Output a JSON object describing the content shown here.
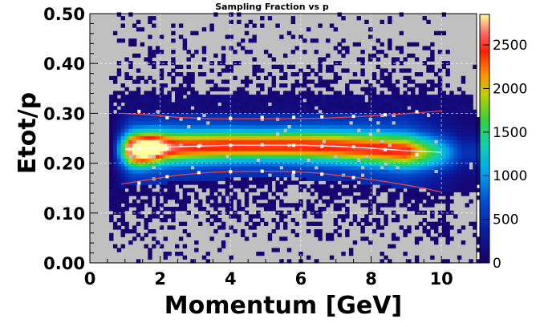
{
  "chart_data": {
    "type": "heatmap",
    "title": "Sampling Fraction vs p",
    "xlabel": "Momentum  [GeV]",
    "ylabel": "Etot/p",
    "xlim": [
      0,
      11
    ],
    "ylim": [
      0.0,
      0.5
    ],
    "x_ticks": [
      "0",
      "2",
      "4",
      "6",
      "8",
      "10"
    ],
    "y_ticks": [
      "0.00",
      "0.10",
      "0.20",
      "0.30",
      "0.40",
      "0.50"
    ],
    "z_range": [
      0,
      2850
    ],
    "z_ticks": [
      "0",
      "500",
      "1000",
      "1500",
      "2000",
      "2500"
    ],
    "colormap": "rainbow",
    "background_color": "#c0c0c0",
    "grid": true,
    "band": {
      "center": [
        {
          "x": 1.0,
          "y": 0.228
        },
        {
          "x": 1.5,
          "y": 0.229
        },
        {
          "x": 2.0,
          "y": 0.232
        },
        {
          "x": 3.0,
          "y": 0.234
        },
        {
          "x": 4.0,
          "y": 0.236
        },
        {
          "x": 5.0,
          "y": 0.236
        },
        {
          "x": 6.0,
          "y": 0.236
        },
        {
          "x": 7.0,
          "y": 0.234
        },
        {
          "x": 8.0,
          "y": 0.23
        },
        {
          "x": 9.0,
          "y": 0.225
        },
        {
          "x": 10.0,
          "y": 0.222
        }
      ],
      "upper": [
        {
          "x": 0.9,
          "y": 0.3
        },
        {
          "x": 1.5,
          "y": 0.298
        },
        {
          "x": 2.5,
          "y": 0.292
        },
        {
          "x": 3.5,
          "y": 0.289
        },
        {
          "x": 4.5,
          "y": 0.289
        },
        {
          "x": 5.5,
          "y": 0.289
        },
        {
          "x": 6.5,
          "y": 0.29
        },
        {
          "x": 7.5,
          "y": 0.293
        },
        {
          "x": 8.5,
          "y": 0.297
        },
        {
          "x": 9.5,
          "y": 0.302
        },
        {
          "x": 10.0,
          "y": 0.305
        }
      ],
      "lower": [
        {
          "x": 0.9,
          "y": 0.158
        },
        {
          "x": 1.5,
          "y": 0.165
        },
        {
          "x": 2.5,
          "y": 0.176
        },
        {
          "x": 3.5,
          "y": 0.182
        },
        {
          "x": 4.5,
          "y": 0.184
        },
        {
          "x": 5.5,
          "y": 0.184
        },
        {
          "x": 6.5,
          "y": 0.18
        },
        {
          "x": 7.5,
          "y": 0.172
        },
        {
          "x": 8.5,
          "y": 0.162
        },
        {
          "x": 9.5,
          "y": 0.15
        },
        {
          "x": 10.0,
          "y": 0.142
        }
      ]
    },
    "fit_points_upper": [
      {
        "x": 1.4,
        "y": 0.304
      },
      {
        "x": 2.2,
        "y": 0.291
      },
      {
        "x": 3.1,
        "y": 0.289
      },
      {
        "x": 4.0,
        "y": 0.29
      },
      {
        "x": 4.9,
        "y": 0.292
      },
      {
        "x": 5.8,
        "y": 0.292
      },
      {
        "x": 6.6,
        "y": 0.293
      },
      {
        "x": 7.5,
        "y": 0.294
      },
      {
        "x": 8.4,
        "y": 0.297
      },
      {
        "x": 9.3,
        "y": 0.303
      }
    ],
    "fit_points_mean": [
      {
        "x": 1.4,
        "y": 0.229
      },
      {
        "x": 2.2,
        "y": 0.23
      },
      {
        "x": 3.1,
        "y": 0.234
      },
      {
        "x": 4.0,
        "y": 0.236
      },
      {
        "x": 4.9,
        "y": 0.237
      },
      {
        "x": 5.8,
        "y": 0.236
      },
      {
        "x": 6.6,
        "y": 0.234
      },
      {
        "x": 7.5,
        "y": 0.233
      },
      {
        "x": 8.4,
        "y": 0.227
      },
      {
        "x": 9.3,
        "y": 0.217
      }
    ],
    "fit_points_lower": [
      {
        "x": 1.4,
        "y": 0.16
      },
      {
        "x": 2.2,
        "y": 0.173
      },
      {
        "x": 3.1,
        "y": 0.181
      },
      {
        "x": 4.0,
        "y": 0.183
      },
      {
        "x": 4.9,
        "y": 0.184
      },
      {
        "x": 5.8,
        "y": 0.182
      },
      {
        "x": 6.6,
        "y": 0.178
      },
      {
        "x": 7.5,
        "y": 0.171
      }
    ],
    "colors": {
      "center_line": "#ffffff",
      "band_lines": "#ff4040",
      "fit_markers": "#ffffff",
      "grid": "#ffffff",
      "background": "#c0c0c0"
    }
  }
}
